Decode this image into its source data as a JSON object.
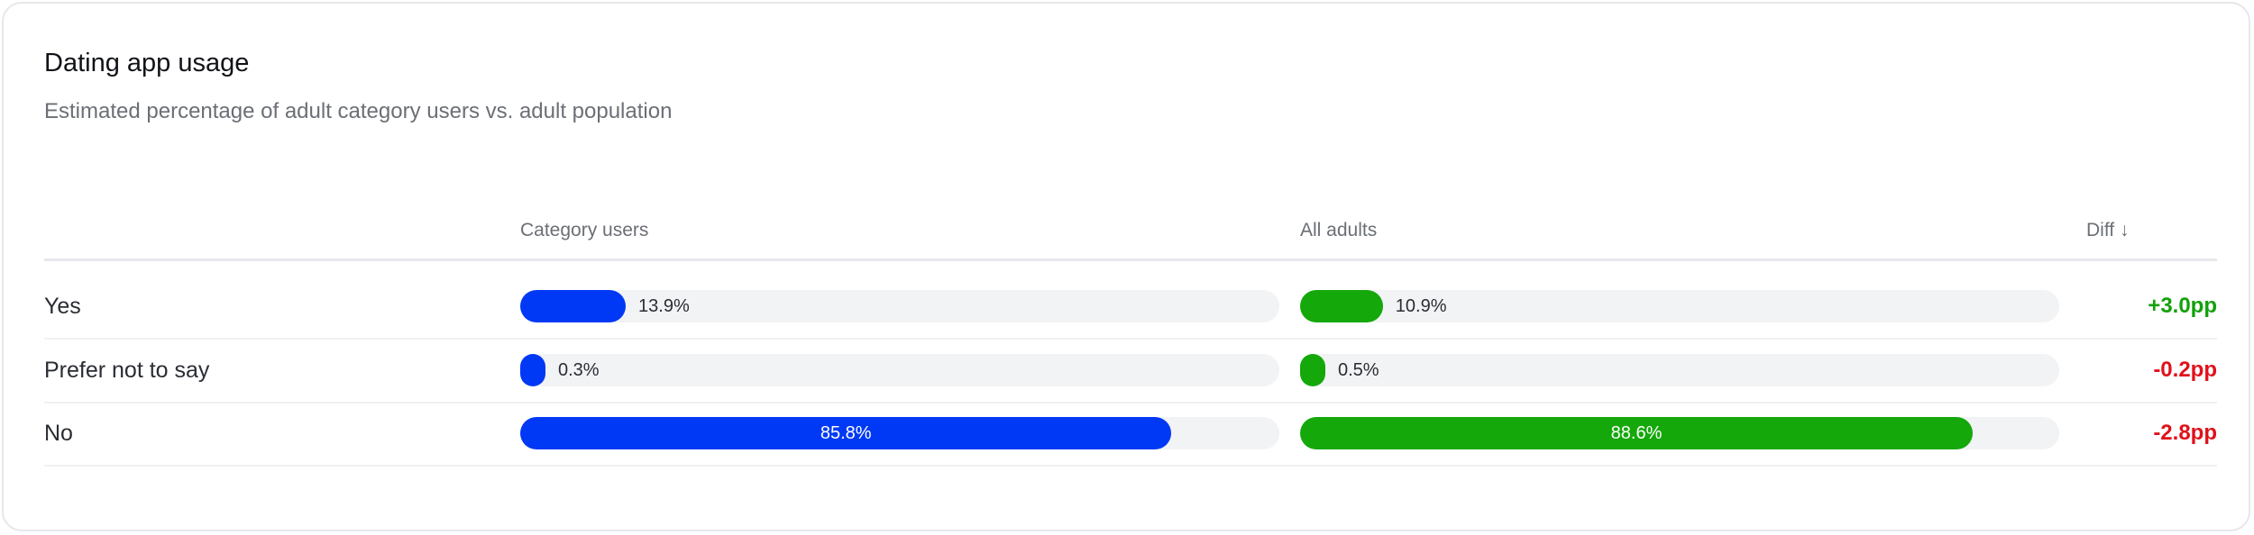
{
  "title": "Dating app usage",
  "subtitle": "Estimated percentage of adult category users vs. adult population",
  "colors": {
    "category": "#0039f5",
    "all": "#14a80a",
    "positive": "#12a10a",
    "negative": "#e0111a",
    "track": "#f2f3f5"
  },
  "chart_data": {
    "type": "bar",
    "columns": {
      "label": "",
      "category": "Category users",
      "all": "All adults",
      "diff": "Diff ↓"
    },
    "sort": "Diff descending",
    "xlim": [
      0,
      100
    ],
    "rows": [
      {
        "label": "Yes",
        "category": 13.9,
        "category_text": "13.9%",
        "all": 10.9,
        "all_text": "10.9%",
        "diff": 3.0,
        "diff_text": "+3.0pp"
      },
      {
        "label": "Prefer not to say",
        "category": 0.3,
        "category_text": "0.3%",
        "all": 0.5,
        "all_text": "0.5%",
        "diff": -0.2,
        "diff_text": "-0.2pp"
      },
      {
        "label": "No",
        "category": 85.8,
        "category_text": "85.8%",
        "all": 88.6,
        "all_text": "88.6%",
        "diff": -2.8,
        "diff_text": "-2.8pp"
      }
    ]
  }
}
